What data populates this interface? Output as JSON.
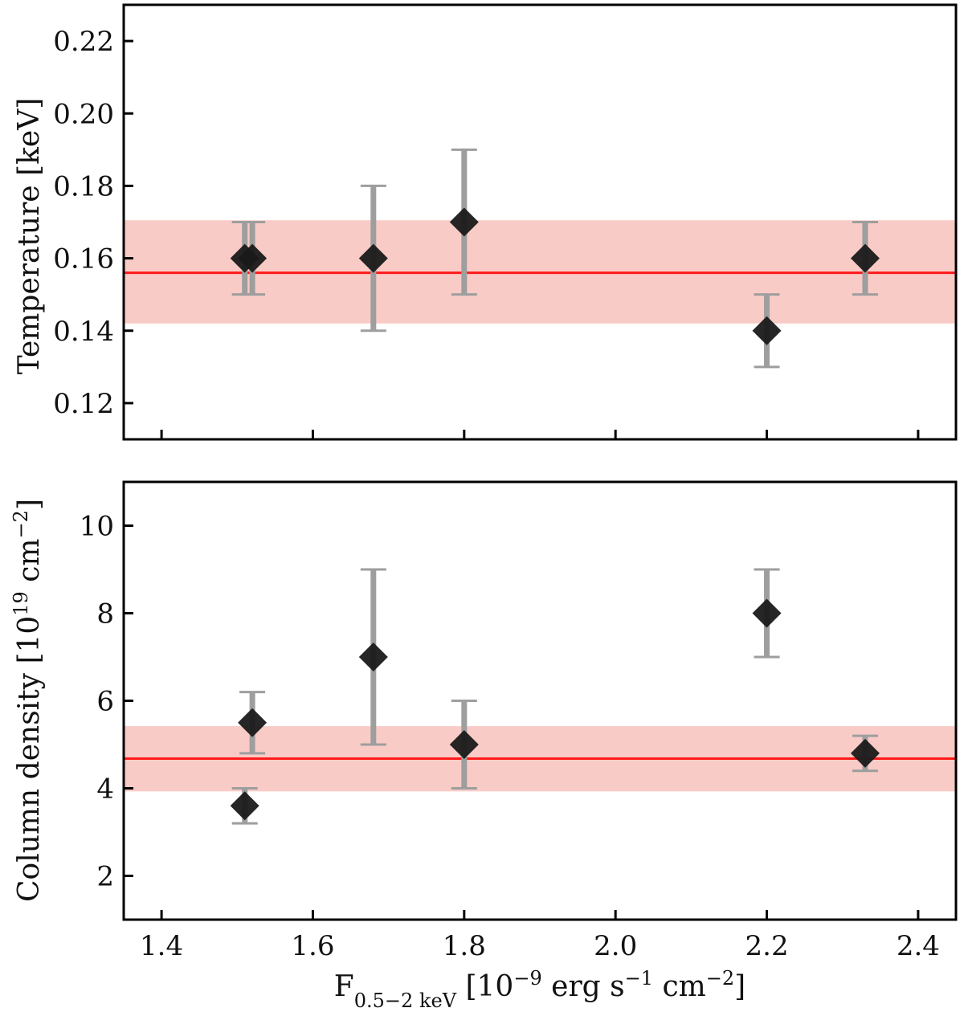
{
  "chart_data": [
    {
      "id": "temperature",
      "type": "scatter",
      "ylabel": "Temperature [keV]",
      "xlim": [
        1.35,
        2.45
      ],
      "ylim": [
        0.11,
        0.23
      ],
      "xticks": [
        1.4,
        1.6,
        1.8,
        2.0,
        2.2,
        2.4
      ],
      "yticks": [
        0.12,
        0.14,
        0.16,
        0.18,
        0.2,
        0.22
      ],
      "ytick_labels": [
        "0.12",
        "0.14",
        "0.16",
        "0.18",
        "0.20",
        "0.22"
      ],
      "show_xtick_labels": false,
      "mean": 0.156,
      "band": [
        0.142,
        0.1705
      ],
      "points": [
        {
          "x": 1.51,
          "y": 0.16,
          "lo": 0.15,
          "hi": 0.17
        },
        {
          "x": 1.52,
          "y": 0.16,
          "lo": 0.15,
          "hi": 0.17
        },
        {
          "x": 1.68,
          "y": 0.16,
          "lo": 0.14,
          "hi": 0.18
        },
        {
          "x": 1.8,
          "y": 0.17,
          "lo": 0.15,
          "hi": 0.19
        },
        {
          "x": 2.2,
          "y": 0.14,
          "lo": 0.13,
          "hi": 0.15
        },
        {
          "x": 2.33,
          "y": 0.16,
          "lo": 0.15,
          "hi": 0.17
        }
      ]
    },
    {
      "id": "column-density",
      "type": "scatter",
      "ylabel": "Column density [10",
      "ylabel_exp": "19",
      "ylabel_unit": " cm",
      "ylabel_unit_exp": "−2",
      "ylabel_close": "]",
      "xlim": [
        1.35,
        2.45
      ],
      "ylim": [
        1.0,
        11.0
      ],
      "xticks": [
        1.4,
        1.6,
        1.8,
        2.0,
        2.2,
        2.4
      ],
      "xtick_labels": [
        "1.4",
        "1.6",
        "1.8",
        "2.0",
        "2.2",
        "2.4"
      ],
      "yticks": [
        2,
        4,
        6,
        8,
        10
      ],
      "ytick_labels": [
        "2",
        "4",
        "6",
        "8",
        "10"
      ],
      "show_xtick_labels": true,
      "mean": 4.68,
      "band": [
        3.93,
        5.42
      ],
      "points": [
        {
          "x": 1.51,
          "y": 3.6,
          "lo": 3.2,
          "hi": 4.0
        },
        {
          "x": 1.52,
          "y": 5.5,
          "lo": 4.8,
          "hi": 6.2
        },
        {
          "x": 1.68,
          "y": 7.0,
          "lo": 5.0,
          "hi": 9.0
        },
        {
          "x": 1.8,
          "y": 5.0,
          "lo": 4.0,
          "hi": 6.0
        },
        {
          "x": 2.2,
          "y": 8.0,
          "lo": 7.0,
          "hi": 9.0
        },
        {
          "x": 2.33,
          "y": 4.8,
          "lo": 4.4,
          "hi": 5.2
        }
      ]
    }
  ],
  "xlabel": {
    "base": "F",
    "sub": "0.5−2 keV",
    "text": " [10",
    "exp1": "−9",
    "mid": " erg s",
    "exp2": "−1",
    "mid2": " cm",
    "exp3": "−2",
    "close": "]"
  },
  "colors": {
    "band": "#f9cbc6",
    "mean_line": "#ff1a1a",
    "marker": "#1a1a1a",
    "errorbar": "#9e9e9e",
    "axis": "#000000"
  }
}
